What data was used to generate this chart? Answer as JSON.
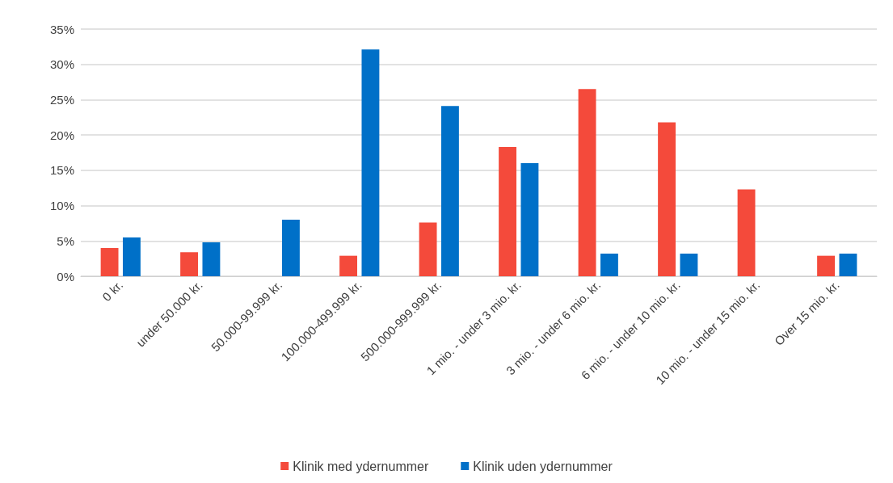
{
  "chart_data": {
    "type": "bar",
    "categories": [
      "0 kr.",
      "under 50.000 kr.",
      "50.000-99.999 kr.",
      "100.000-499.999 kr.",
      "500.000-999.999 kr.",
      "1 mio. - under 3 mio. kr.",
      "3 mio. - under 6 mio. kr.",
      "6 mio. - under 10 mio. kr.",
      "10 mio. - under 15 mio. kr.",
      "Over 15 mio. kr."
    ],
    "series": [
      {
        "name": "Klinik med ydernummer",
        "color": "#f44a3b",
        "values": [
          4.0,
          3.4,
          null,
          2.9,
          7.6,
          18.3,
          26.5,
          21.8,
          12.3,
          2.9
        ]
      },
      {
        "name": "Klinik uden ydernummer",
        "color": "#0070c8",
        "values": [
          5.5,
          4.8,
          8.0,
          32.1,
          24.1,
          16.0,
          3.2,
          3.2,
          null,
          3.2
        ]
      }
    ],
    "ylim": [
      0,
      35
    ],
    "yticks": [
      {
        "value": 0,
        "label": "0%"
      },
      {
        "value": 5,
        "label": "5%"
      },
      {
        "value": 10,
        "label": "10%"
      },
      {
        "value": 15,
        "label": "15%"
      },
      {
        "value": 20,
        "label": "20%"
      },
      {
        "value": 25,
        "label": "25%"
      },
      {
        "value": 30,
        "label": "30%"
      },
      {
        "value": 35,
        "label": "35%"
      }
    ],
    "grid": "y",
    "legend": "bottom"
  }
}
